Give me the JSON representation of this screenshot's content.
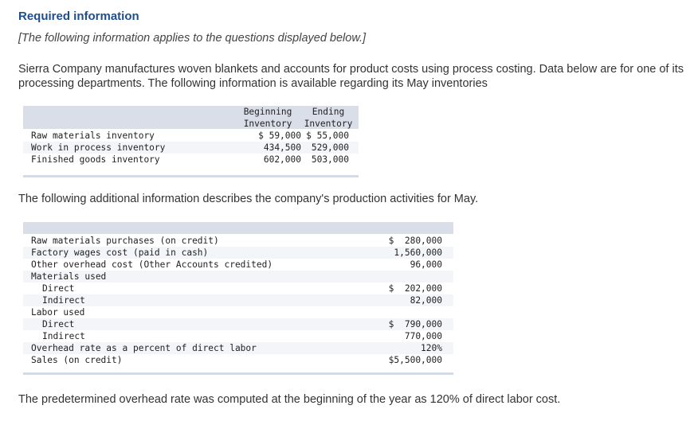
{
  "header": {
    "title": "Required information",
    "note": "[The following information applies to the questions displayed below.]"
  },
  "intro": "Sierra Company manufactures woven blankets and accounts for product costs using process costing. Data below are for one of its processing departments. The following information is available regarding its May inventories",
  "inventory_table": {
    "col1_header": "Beginning\nInventory",
    "col2_header": "Ending\nInventory",
    "rows": [
      {
        "label": "Raw materials inventory",
        "beginning": "$ 59,000",
        "ending": "$ 55,000"
      },
      {
        "label": "Work in process inventory",
        "beginning": "434,500",
        "ending": "529,000"
      },
      {
        "label": "Finished goods inventory",
        "beginning": "602,000",
        "ending": "503,000"
      }
    ]
  },
  "additional_text": "The following additional information describes the company's production activities for May.",
  "production_table": {
    "rows": [
      {
        "label": "Raw materials purchases (on credit)",
        "value": "$  280,000"
      },
      {
        "label": "Factory wages cost (paid in cash)",
        "value": "1,560,000"
      },
      {
        "label": "Other overhead cost (Other Accounts credited)",
        "value": "96,000"
      },
      {
        "label": "Materials used",
        "value": ""
      },
      {
        "label": "Direct",
        "value": "$  202,000"
      },
      {
        "label": "Indirect",
        "value": "82,000"
      },
      {
        "label": "Labor used",
        "value": ""
      },
      {
        "label": "Direct",
        "value": "$  790,000"
      },
      {
        "label": "Indirect",
        "value": "770,000"
      },
      {
        "label": "Overhead rate as a percent of direct labor",
        "value": "120%"
      },
      {
        "label": "Sales (on credit)",
        "value": "$5,500,000"
      }
    ]
  },
  "closing_text": "The predetermined overhead rate was computed at the beginning of the year as 120% of direct labor cost."
}
